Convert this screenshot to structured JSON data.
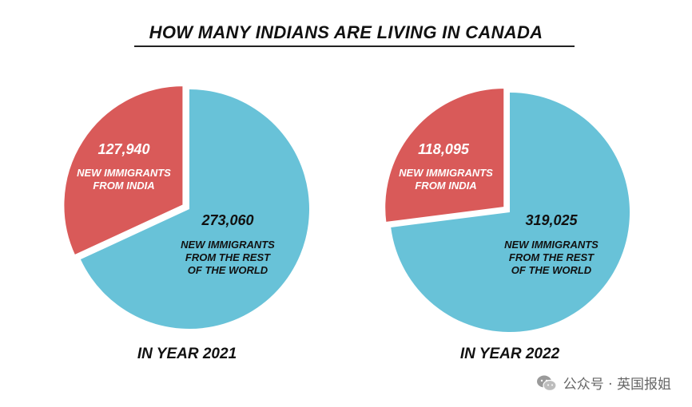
{
  "title": "HOW MANY INDIANS ARE LIVING IN CANADA",
  "colors": {
    "india": "#d95a59",
    "rest": "#68c2d8",
    "text_on_india": "#ffffff",
    "text_on_rest": "#111111"
  },
  "watermark": {
    "text": "公众号 · 英国报姐",
    "icon": "wechat-icon"
  },
  "chart_data": [
    {
      "type": "pie",
      "title": "IN YEAR 2021",
      "slices": [
        {
          "value": 127940,
          "value_label": "127,940",
          "label": [
            "NEW IMMIGRANTS",
            "FROM INDIA"
          ],
          "color": "#d95a59",
          "exploded": true
        },
        {
          "value": 273060,
          "value_label": "273,060",
          "label": [
            "NEW IMMIGRANTS",
            "FROM THE REST",
            "OF THE WORLD"
          ],
          "color": "#68c2d8",
          "exploded": false
        }
      ]
    },
    {
      "type": "pie",
      "title": "IN YEAR 2022",
      "slices": [
        {
          "value": 118095,
          "value_label": "118,095",
          "label": [
            "NEW IMMIGRANTS",
            "FROM INDIA"
          ],
          "color": "#d95a59",
          "exploded": true
        },
        {
          "value": 319025,
          "value_label": "319,025",
          "label": [
            "NEW IMMIGRANTS",
            "FROM THE REST",
            "OF THE WORLD"
          ],
          "color": "#68c2d8",
          "exploded": false
        }
      ]
    }
  ]
}
